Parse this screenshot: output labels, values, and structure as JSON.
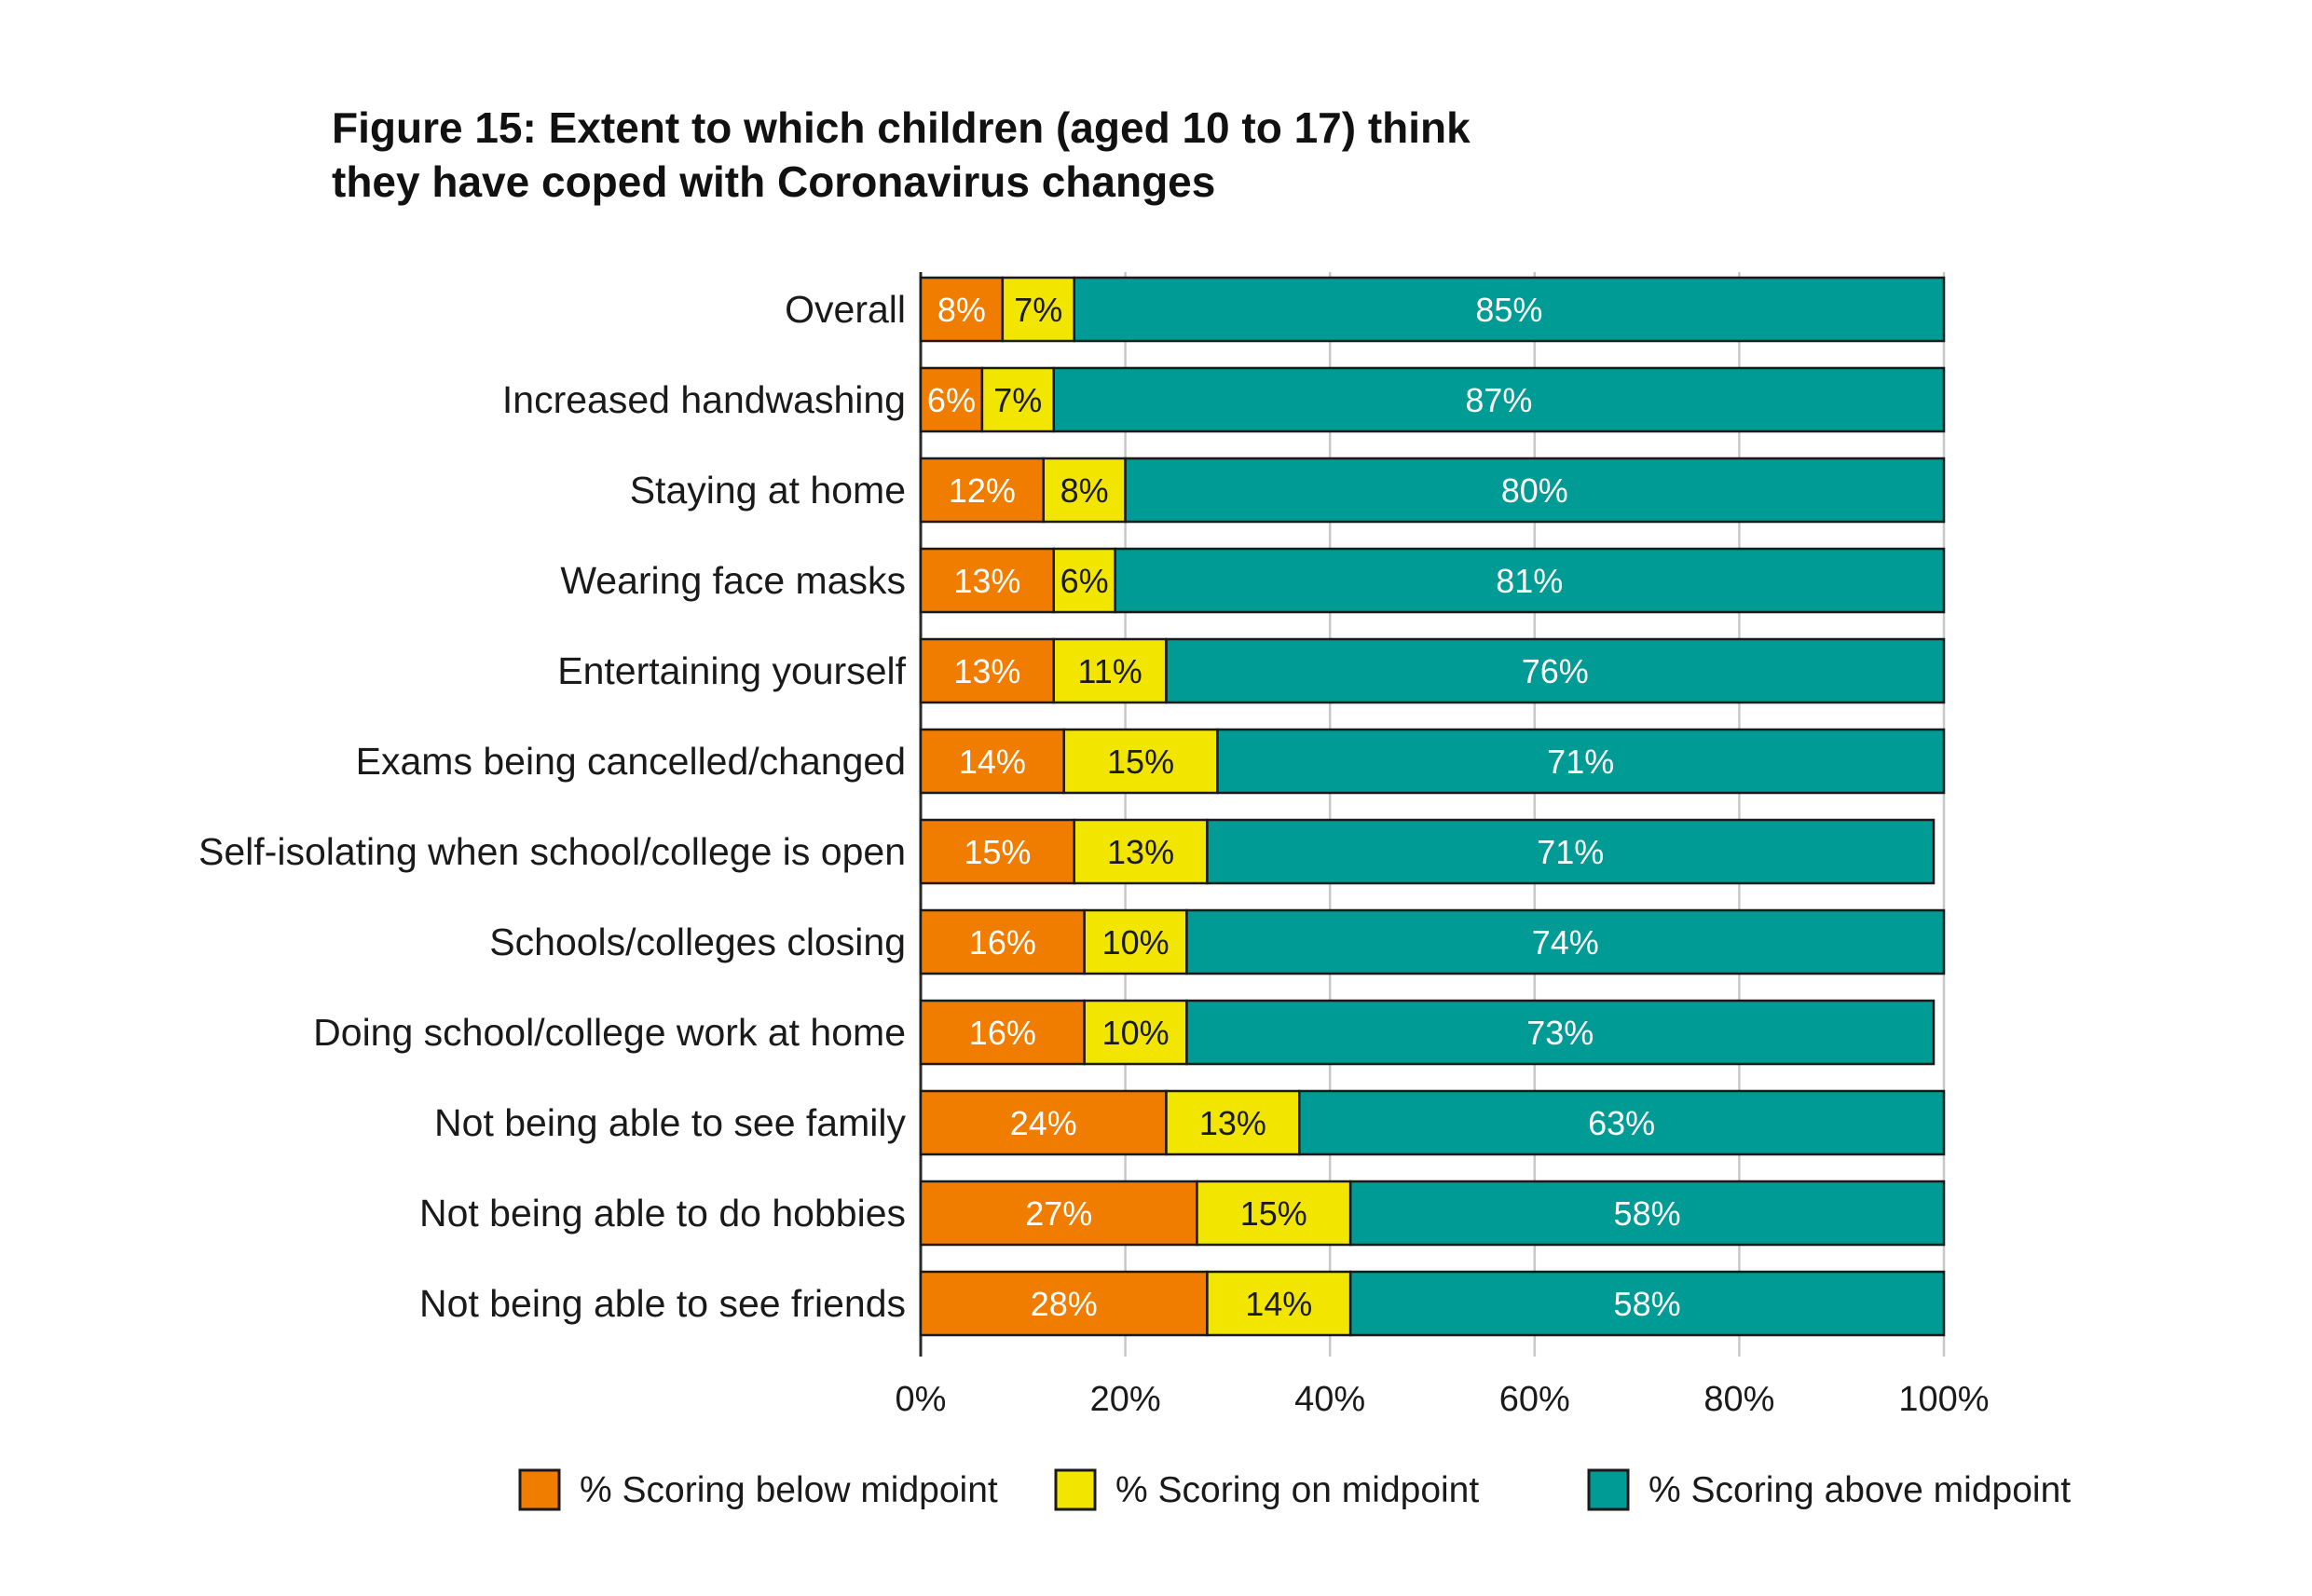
{
  "chart_data": {
    "type": "bar",
    "orientation": "horizontal",
    "stacked": true,
    "title": "Figure 15: Extent to which children (aged 10 to 17) think they have coped with Coronavirus changes",
    "title_lines": [
      "Figure 15: Extent to which children (aged 10 to 17) think",
      "they have coped with Coronavirus changes"
    ],
    "categories": [
      "Overall",
      "Increased handwashing",
      "Staying at home",
      "Wearing face masks",
      "Entertaining yourself",
      "Exams being cancelled/changed",
      "Self-isolating when school/college is open",
      "Schools/colleges closing",
      "Doing school/college work at home",
      "Not being able to see family",
      "Not being able to do hobbies",
      "Not being able to see friends"
    ],
    "series": [
      {
        "name": "% Scoring below midpoint",
        "color": "#f07c00",
        "label_color": "#ffffff",
        "values": [
          8,
          6,
          12,
          13,
          13,
          14,
          15,
          16,
          16,
          24,
          27,
          28
        ]
      },
      {
        "name": "% Scoring on midpoint",
        "color": "#f2e500",
        "label_color": "#1a1a1a",
        "values": [
          7,
          7,
          8,
          6,
          11,
          15,
          13,
          10,
          10,
          13,
          15,
          14
        ]
      },
      {
        "name": "% Scoring above midpoint",
        "color": "#009b94",
        "label_color": "#ffffff",
        "values": [
          85,
          87,
          80,
          81,
          76,
          71,
          71,
          74,
          73,
          63,
          58,
          58
        ]
      }
    ],
    "xlim": [
      0,
      100
    ],
    "x_ticks": [
      0,
      20,
      40,
      60,
      80,
      100
    ],
    "x_tick_labels": [
      "0%",
      "20%",
      "40%",
      "60%",
      "80%",
      "100%"
    ],
    "xlabel": "",
    "ylabel": "",
    "grid": true,
    "legend_position": "bottom"
  }
}
